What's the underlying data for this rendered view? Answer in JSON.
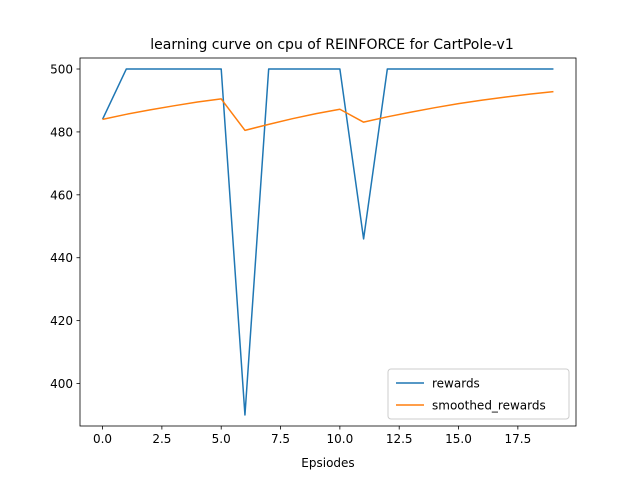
{
  "chart_data": {
    "type": "line",
    "title": "learning curve on cpu of REINFORCE for CartPole-v1",
    "xlabel": "Epsiodes",
    "ylabel": "",
    "xlim": [
      -0.95,
      19.95
    ],
    "ylim": [
      386.5,
      503.5
    ],
    "xticks": [
      0,
      2.5,
      5,
      7.5,
      10,
      12.5,
      15,
      17.5
    ],
    "xtick_labels": [
      "0.0",
      "2.5",
      "5.0",
      "7.5",
      "10.0",
      "12.5",
      "15.0",
      "17.5"
    ],
    "yticks": [
      400,
      420,
      440,
      460,
      480,
      500
    ],
    "ytick_labels": [
      "400",
      "420",
      "440",
      "460",
      "480",
      "500"
    ],
    "grid": false,
    "legend_position": "lower-right",
    "x": [
      0,
      1,
      2,
      3,
      4,
      5,
      6,
      7,
      8,
      9,
      10,
      11,
      12,
      13,
      14,
      15,
      16,
      17,
      18,
      19
    ],
    "series": [
      {
        "name": "rewards",
        "color": "#1f77b4",
        "values": [
          484,
          500,
          500,
          500,
          500,
          500,
          390,
          500,
          500,
          500,
          500,
          446,
          500,
          500,
          500,
          500,
          500,
          500,
          500,
          500
        ]
      },
      {
        "name": "smoothed_rewards",
        "color": "#ff7f0e",
        "values": [
          484,
          485.6,
          487.0,
          488.3,
          489.5,
          490.5,
          480.5,
          482.4,
          484.2,
          485.8,
          487.2,
          483.1,
          484.8,
          486.3,
          487.7,
          489.0,
          490.1,
          491.1,
          492.0,
          492.8
        ]
      }
    ]
  }
}
